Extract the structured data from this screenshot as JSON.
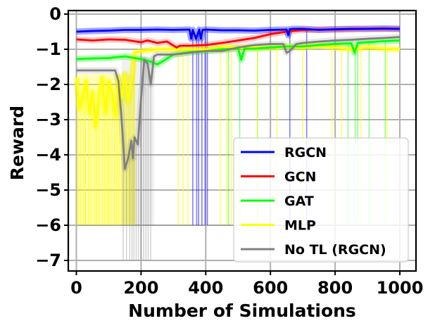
{
  "chart_data": {
    "type": "line",
    "title": "",
    "xlabel": "Number of Simulations",
    "ylabel": "Reward",
    "xlim": [
      -25,
      1050
    ],
    "ylim": [
      -7.3,
      0.1
    ],
    "grid": true,
    "legend_position": "lower-right",
    "x_ticks": [
      0,
      200,
      400,
      600,
      800,
      1000
    ],
    "x_tick_labels": [
      "0",
      "200",
      "400",
      "600",
      "800",
      "1000"
    ],
    "y_ticks": [
      0,
      -1,
      -2,
      -3,
      -4,
      -5,
      -6,
      -7
    ],
    "y_tick_labels": [
      "0",
      "−1",
      "−2",
      "−3",
      "−4",
      "−5",
      "−6",
      "−7"
    ],
    "series": [
      {
        "name": "RGCN",
        "color": "#0000ff",
        "x": [
          0,
          50,
          100,
          150,
          200,
          250,
          300,
          350,
          355,
          360,
          370,
          380,
          385,
          390,
          400,
          450,
          500,
          550,
          600,
          650,
          655,
          660,
          670,
          700,
          750,
          800,
          850,
          900,
          950,
          1000
        ],
        "values": [
          -0.5,
          -0.48,
          -0.47,
          -0.45,
          -0.45,
          -0.44,
          -0.45,
          -0.44,
          -0.7,
          -0.45,
          -0.7,
          -0.44,
          -0.7,
          -0.45,
          -0.44,
          -0.46,
          -0.46,
          -0.47,
          -0.45,
          -0.44,
          -0.6,
          -0.43,
          -0.42,
          -0.42,
          -0.45,
          -0.43,
          -0.42,
          -0.42,
          -0.41,
          -0.42
        ]
      },
      {
        "name": "GCN",
        "color": "#ff0000",
        "x": [
          0,
          50,
          100,
          150,
          200,
          220,
          250,
          280,
          310,
          320,
          350,
          400,
          450,
          500,
          550,
          600,
          650,
          700,
          750,
          800,
          850,
          900,
          950,
          1000
        ],
        "values": [
          -0.72,
          -0.75,
          -0.72,
          -0.73,
          -0.8,
          -0.75,
          -0.82,
          -0.78,
          -0.95,
          -0.9,
          -0.9,
          -0.88,
          -0.82,
          -0.75,
          -0.68,
          -0.57,
          -0.5,
          -0.45,
          -0.44,
          -0.44,
          -0.43,
          -0.42,
          -0.42,
          -0.42
        ]
      },
      {
        "name": "GAT",
        "color": "#00ff00",
        "x": [
          0,
          50,
          100,
          150,
          200,
          230,
          250,
          260,
          300,
          350,
          400,
          450,
          500,
          510,
          520,
          550,
          600,
          650,
          700,
          750,
          800,
          850,
          860,
          870,
          900,
          950,
          1000
        ],
        "values": [
          -1.28,
          -1.26,
          -1.25,
          -1.2,
          -1.28,
          -1.35,
          -1.43,
          -1.38,
          -1.15,
          -1.08,
          -1.05,
          -1.0,
          -0.98,
          -1.3,
          -0.98,
          -0.98,
          -0.95,
          -0.92,
          -0.92,
          -0.88,
          -0.85,
          -0.83,
          -1.1,
          -0.82,
          -0.8,
          -0.77,
          -0.75
        ]
      },
      {
        "name": "MLP",
        "color": "#ffff00",
        "x": [
          0,
          10,
          20,
          30,
          40,
          50,
          60,
          70,
          80,
          90,
          100,
          110,
          120,
          130,
          140,
          150,
          160,
          170,
          180,
          200,
          250,
          300,
          350,
          400,
          450,
          500,
          550,
          600,
          650,
          700,
          750,
          800,
          850,
          900,
          950,
          1000
        ],
        "values": [
          -1.8,
          -2.7,
          -2.3,
          -1.9,
          -2.8,
          -2.2,
          -3.2,
          -2.3,
          -1.8,
          -2.8,
          -1.9,
          -2.2,
          -2.9,
          -1.8,
          -2.4,
          -1.7,
          -2.5,
          -1.9,
          -1.1,
          -1.05,
          -1.0,
          -1.0,
          -1.0,
          -1.0,
          -0.95,
          -0.95,
          -0.95,
          -0.95,
          -0.92,
          -0.95,
          -0.9,
          -0.95,
          -1.0,
          -0.95,
          -0.98,
          -1.0
        ]
      },
      {
        "name": "No TL (RGCN)",
        "color": "#808080",
        "x": [
          0,
          30,
          60,
          100,
          120,
          130,
          140,
          150,
          160,
          170,
          175,
          180,
          190,
          200,
          210,
          220,
          230,
          240,
          250,
          300,
          350,
          400,
          450,
          500,
          550,
          600,
          640,
          650,
          660,
          680,
          700,
          750,
          800,
          850,
          900,
          950,
          1000
        ],
        "values": [
          -1.6,
          -1.6,
          -1.6,
          -1.6,
          -1.6,
          -1.9,
          -3.0,
          -4.4,
          -4.1,
          -3.6,
          -4.1,
          -3.5,
          -3.7,
          -2.4,
          -1.3,
          -1.4,
          -2.0,
          -1.2,
          -1.15,
          -1.15,
          -1.1,
          -1.05,
          -1.05,
          -0.95,
          -0.88,
          -0.85,
          -0.85,
          -1.1,
          -1.05,
          -0.85,
          -0.82,
          -0.78,
          -0.75,
          -0.73,
          -0.7,
          -0.68,
          -0.65
        ]
      }
    ],
    "noise_bands": [
      {
        "series": "RGCN",
        "color": "#0000ff",
        "opacity": 0.35,
        "spikes": [
          360,
          372,
          378,
          388,
          398,
          405,
          660,
          712
        ]
      },
      {
        "series": "GCN",
        "color": "#ff0000",
        "opacity": 0.2,
        "spikes": []
      },
      {
        "series": "GAT",
        "color": "#00ff00",
        "opacity": 0.3,
        "spikes": [
          470,
          505,
          560,
          840,
          862,
          870,
          905,
          955
        ]
      },
      {
        "series": "MLP",
        "color": "#ffff00",
        "opacity": 0.45,
        "spikes": [
          5,
          12,
          22,
          28,
          38,
          45,
          55,
          62,
          70,
          80,
          88,
          95,
          102,
          110,
          118,
          125,
          132,
          140,
          148,
          155,
          162,
          168,
          175,
          180,
          315,
          330,
          345,
          445,
          465,
          480,
          560,
          620,
          700,
          790,
          820,
          880,
          960
        ]
      },
      {
        "series": "No TL (RGCN)",
        "color": "#808080",
        "opacity": 0.18,
        "spikes": [
          145,
          155,
          165,
          172,
          178,
          185,
          192,
          200,
          208,
          215,
          222,
          230
        ]
      }
    ]
  }
}
